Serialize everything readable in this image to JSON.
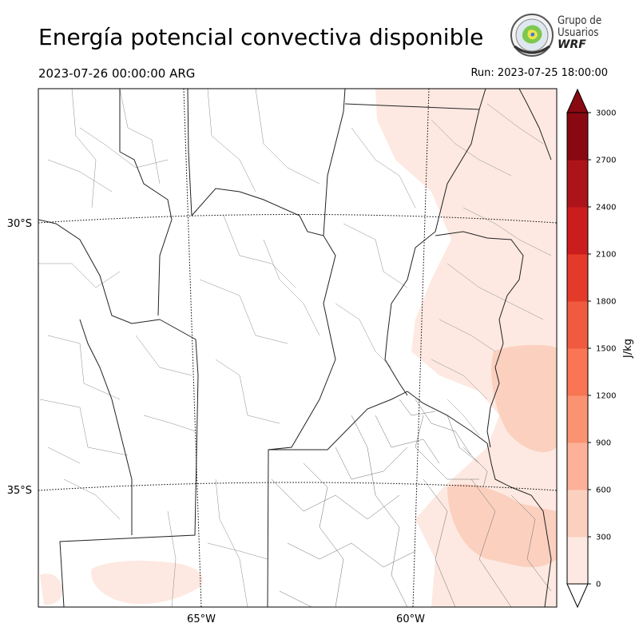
{
  "header": {
    "title": "Energía potencial convectiva disponible",
    "valid_time": "2023-07-26 00:00:00 ARG",
    "run_time": "Run: 2023-07-25 18:00:00"
  },
  "logo": {
    "line1": "Grupo de",
    "line2": "Usuarios",
    "line3": "WRF"
  },
  "map": {
    "lat_labels": [
      "30°S",
      "35°S"
    ],
    "lon_labels": [
      "65°W",
      "60°W"
    ]
  },
  "colorbar": {
    "unit_label": "J/kg",
    "levels": [
      0,
      300,
      600,
      900,
      1200,
      1500,
      1800,
      2100,
      2400,
      2700,
      3000
    ],
    "tick_labels": [
      "0",
      "300",
      "600",
      "900",
      "1200",
      "1500",
      "1800",
      "2100",
      "2400",
      "2700",
      "3000"
    ],
    "colors": [
      "#fde9e1",
      "#fbd0bf",
      "#fcb198",
      "#fb9373",
      "#f97554",
      "#f05a3f",
      "#e43a2a",
      "#cb1d1e",
      "#ad1419",
      "#880911"
    ],
    "extend": "both"
  },
  "colors": {
    "cape_low": "#fde9e1",
    "cape_mid": "#fbd0bf"
  }
}
